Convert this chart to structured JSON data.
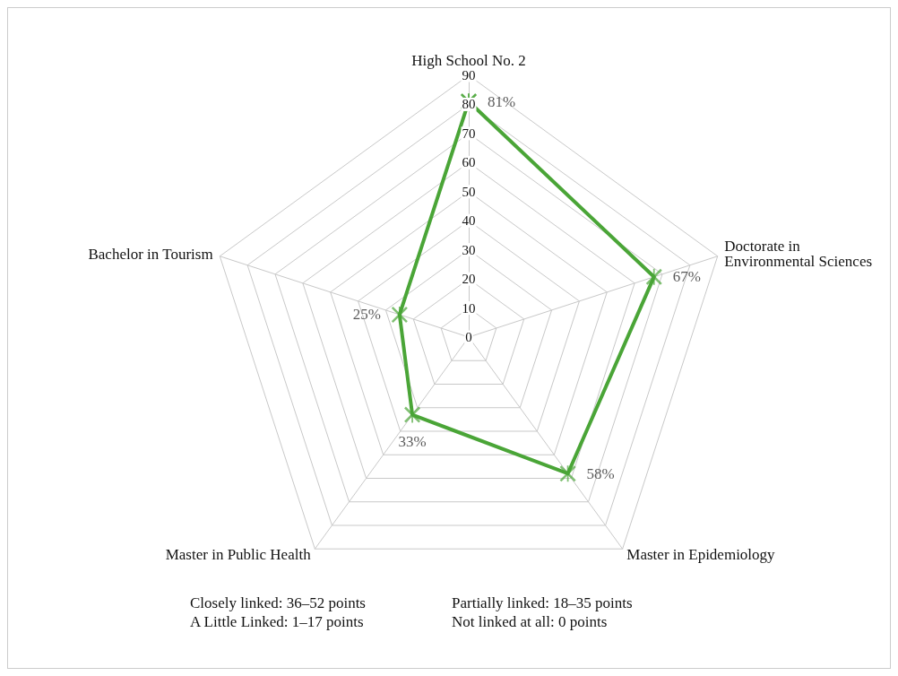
{
  "chart_data": {
    "type": "radar",
    "categories": [
      "High School No. 2",
      "Doctorate in\nEnvironmental Sciences",
      "Master in Epidemiology",
      "Master in Public Health",
      "Bachelor in Tourism"
    ],
    "series": [
      {
        "color": "#4aa537",
        "values": [
          81,
          67,
          58,
          33,
          25
        ],
        "value_labels": [
          "81%",
          "67%",
          "58%",
          "33%",
          "25%"
        ]
      }
    ],
    "ylim": [
      0,
      90
    ],
    "yticks": [
      0,
      10,
      20,
      30,
      40,
      50,
      60,
      70,
      80,
      90
    ],
    "marker": "cross",
    "line_style": "solid",
    "grid": true,
    "annotations": [
      "Closely linked: 36–52 points",
      "Partially linked: 18–35 points",
      "A Little Linked: 1–17 points",
      "Not linked at all: 0 points"
    ]
  }
}
